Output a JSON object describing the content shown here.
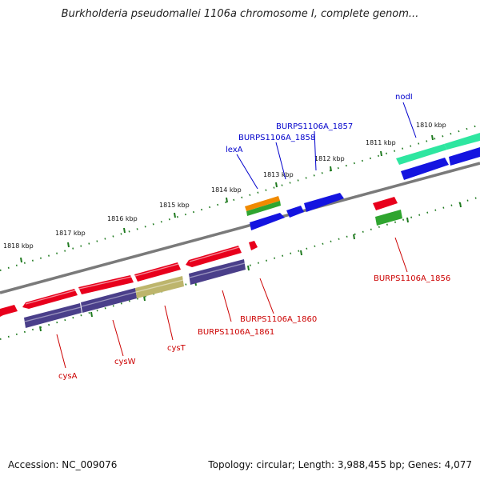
{
  "title": "Burkholderia pseudomallei 1106a chromosome I, complete genom...",
  "footer": {
    "accession": "Accession: NC_009076",
    "stats": "Topology: circular; Length: 3,988,455 bp; Genes: 4,077"
  },
  "colors": {
    "backbone": "#7a7a7a",
    "tick": "#1f7a1f",
    "tick_label": "#111111",
    "label_blue": "#0000cc",
    "label_red": "#cc0000",
    "gene_red": "#e8001c",
    "gene_blue": "#1414e0",
    "gene_navy": "#4a3f8a",
    "gene_olive": "#bdb56c",
    "gene_orange": "#f08a00",
    "gene_green": "#2fa52f",
    "gene_teal": "#2ee6a0"
  },
  "tick_labels": [
    "1818 kbp",
    "1817 kbp",
    "1816 kbp",
    "1815 kbp",
    "1814 kbp",
    "1813 kbp",
    "1812 kbp",
    "1811 kbp",
    "1810 kbp"
  ],
  "feature_labels": [
    {
      "text": "nodI",
      "color": "label_blue"
    },
    {
      "text": "BURPS1106A_1857",
      "color": "label_blue"
    },
    {
      "text": "BURPS1106A_1858",
      "color": "label_blue"
    },
    {
      "text": "lexA",
      "color": "label_blue"
    },
    {
      "text": "BURPS1106A_1856",
      "color": "label_red"
    },
    {
      "text": "BURPS1106A_1860",
      "color": "label_red"
    },
    {
      "text": "BURPS1106A_1861",
      "color": "label_red"
    },
    {
      "text": "cysT",
      "color": "label_red"
    },
    {
      "text": "cysW",
      "color": "label_red"
    },
    {
      "text": "cysA",
      "color": "label_red"
    }
  ]
}
